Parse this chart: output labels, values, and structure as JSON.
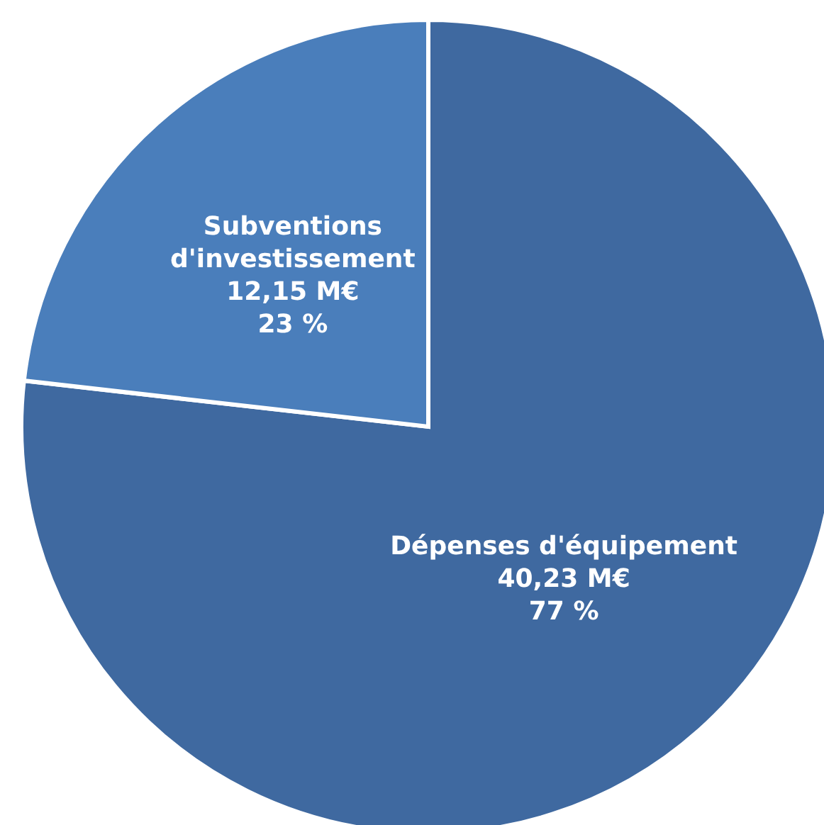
{
  "chart_data": {
    "type": "pie",
    "categories": [
      "Dépenses d'équipement",
      "Subventions d'investissement"
    ],
    "values": [
      40.23,
      12.15
    ],
    "colors": [
      "#3f69a0",
      "#4a7ebb"
    ],
    "value_labels": [
      "40,23 M€\n77 %",
      "12,15 M€\n23 %"
    ],
    "legend": false
  }
}
